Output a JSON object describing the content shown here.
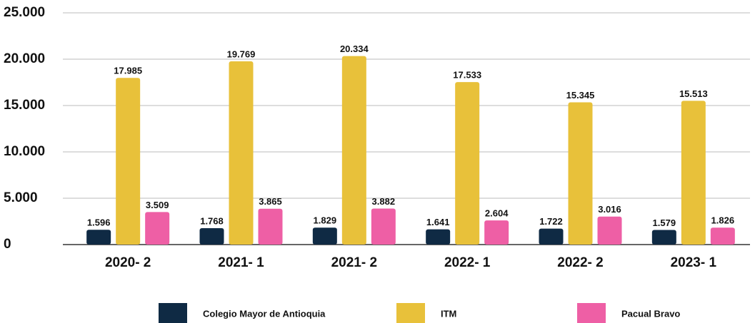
{
  "chart_data": {
    "type": "bar",
    "categories": [
      "2020- 2",
      "2021- 1",
      "2021- 2",
      "2022- 1",
      "2022- 2",
      "2023- 1"
    ],
    "series": [
      {
        "name": "Colegio Mayor de Antioquia",
        "color": "#0f2a44",
        "values": [
          1596,
          1768,
          1829,
          1641,
          1722,
          1579
        ],
        "value_labels": [
          "1.596",
          "1.768",
          "1.829",
          "1.641",
          "1.722",
          "1.579"
        ]
      },
      {
        "name": "ITM",
        "color": "#e8c13a",
        "values": [
          17985,
          19769,
          20334,
          17533,
          15345,
          15513
        ],
        "value_labels": [
          "17.985",
          "19.769",
          "20.334",
          "17.533",
          "15.345",
          "15.513"
        ]
      },
      {
        "name": "Pacual Bravo",
        "color": "#ee5fa5",
        "values": [
          3509,
          3865,
          3882,
          2604,
          3016,
          1826
        ],
        "value_labels": [
          "3.509",
          "3.865",
          "3.882",
          "2.604",
          "3.016",
          "1.826"
        ]
      }
    ],
    "ylim": [
      0,
      25000
    ],
    "yticks": [
      0,
      {
        "value": 5000,
        "label": "5.000"
      },
      {
        "value": 10000,
        "label": "10.000"
      },
      {
        "value": 15000,
        "label": "15.000"
      },
      {
        "value": 20000,
        "label": "20.000"
      },
      {
        "value": 25000,
        "label": "25.000"
      }
    ],
    "grid": true,
    "legend": "bottom"
  }
}
